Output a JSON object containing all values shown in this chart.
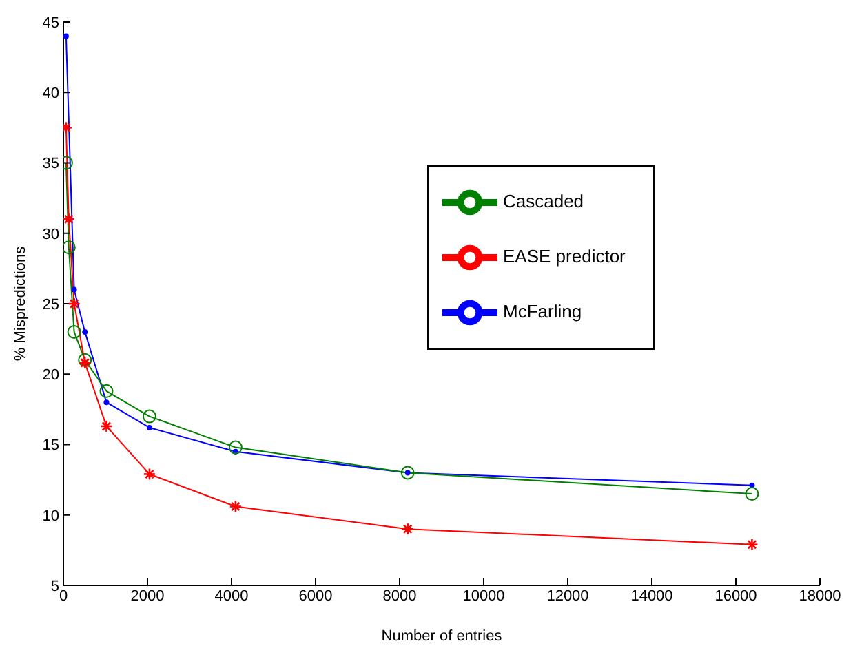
{
  "chart_data": {
    "type": "line",
    "xlabel": "Number of entries",
    "ylabel": "% Mispredictions",
    "xlim": [
      0,
      18000
    ],
    "xticks": [
      0,
      2000,
      4000,
      6000,
      8000,
      10000,
      12000,
      14000,
      16000,
      18000
    ],
    "ylim": [
      5,
      45
    ],
    "yticks": [
      5,
      10,
      15,
      20,
      25,
      30,
      35,
      40,
      45
    ],
    "grid": false,
    "legend": "top right",
    "series": [
      {
        "name": "McFarling",
        "color": "#0000ff",
        "marker": "circle",
        "x": [
          64,
          256,
          512,
          1024,
          2048,
          4096,
          8192,
          16384
        ],
        "values": [
          44,
          26,
          23,
          18,
          16.2,
          14.5,
          13,
          12.1
        ]
      },
      {
        "name": "Cascaded",
        "color": "#008000",
        "marker": "circle",
        "x": [
          64,
          128,
          256,
          512,
          1024,
          2048,
          4096,
          8192,
          16384
        ],
        "values": [
          35,
          29,
          23,
          21,
          18.8,
          17,
          14.8,
          13,
          11.5
        ]
      },
      {
        "name": "EASE predictor",
        "color": "#ff0000",
        "marker": "cross",
        "x": [
          64,
          128,
          256,
          512,
          1024,
          2048,
          4096,
          8192,
          16384
        ],
        "values": [
          37.5,
          31,
          25,
          20.8,
          16.3,
          12.9,
          10.6,
          9,
          7.9
        ]
      }
    ]
  }
}
